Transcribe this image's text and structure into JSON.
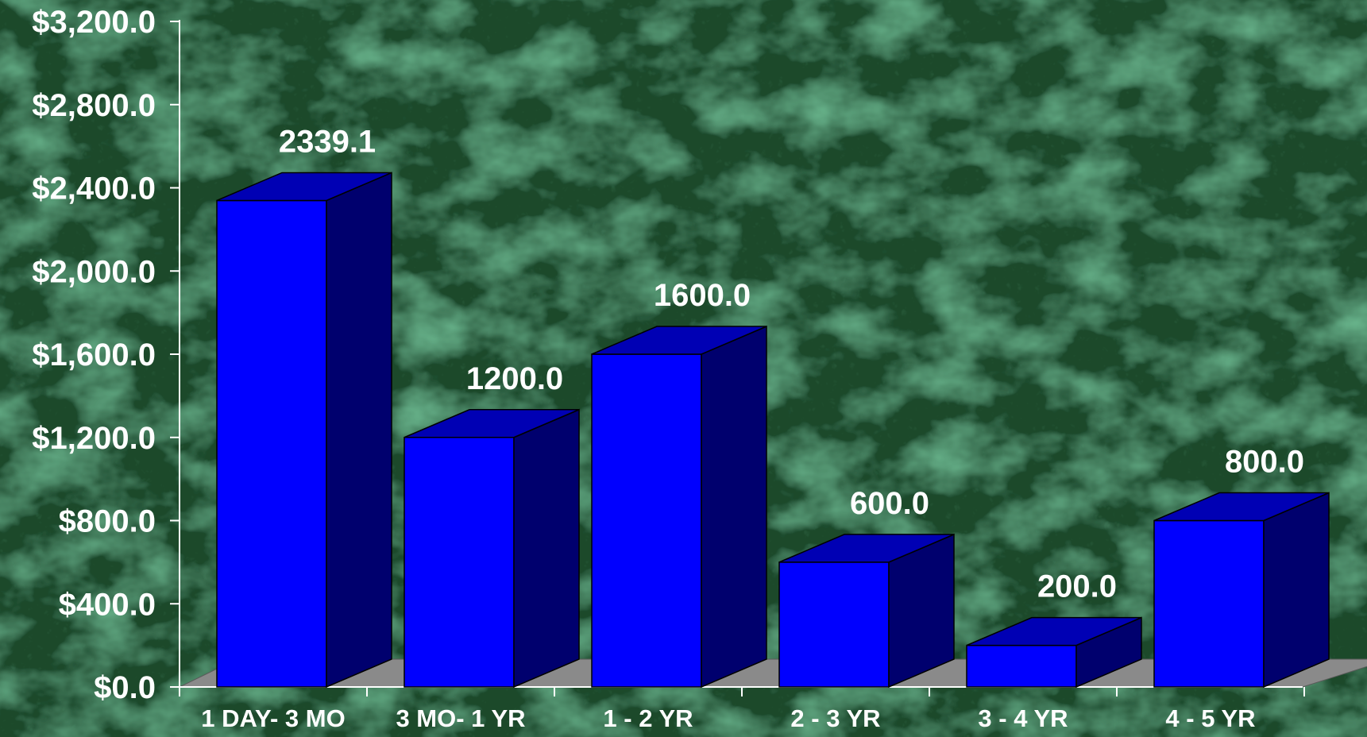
{
  "chart_data": {
    "type": "bar",
    "style": "3d-column",
    "categories": [
      "1 DAY- 3 MO",
      "3 MO- 1 YR",
      "1 - 2 YR",
      "2 - 3 YR",
      "3 - 4 YR",
      "4 - 5 YR"
    ],
    "values": [
      2339.1,
      1200.0,
      1600.0,
      600.0,
      200.0,
      800.0
    ],
    "data_labels": [
      "2339.1",
      "1200.0",
      "1600.0",
      "600.0",
      "200.0",
      "800.0"
    ],
    "y_ticks": [
      "$0.0",
      "$400.0",
      "$800.0",
      "$1,200.0",
      "$1,600.0",
      "$2,000.0",
      "$2,400.0",
      "$2,800.0",
      "$3,200.0"
    ],
    "ylim": [
      0,
      3200
    ],
    "title": "",
    "xlabel": "",
    "ylabel": "",
    "grid": false,
    "legend": "none",
    "colors": {
      "bar_front": "#0000ff",
      "bar_side": "#00006e",
      "bar_top": "#0000b4",
      "floor": "#8a8a8a",
      "text": "#ffffff",
      "axis": "#ffffff",
      "background": "#1b4a2c"
    }
  }
}
